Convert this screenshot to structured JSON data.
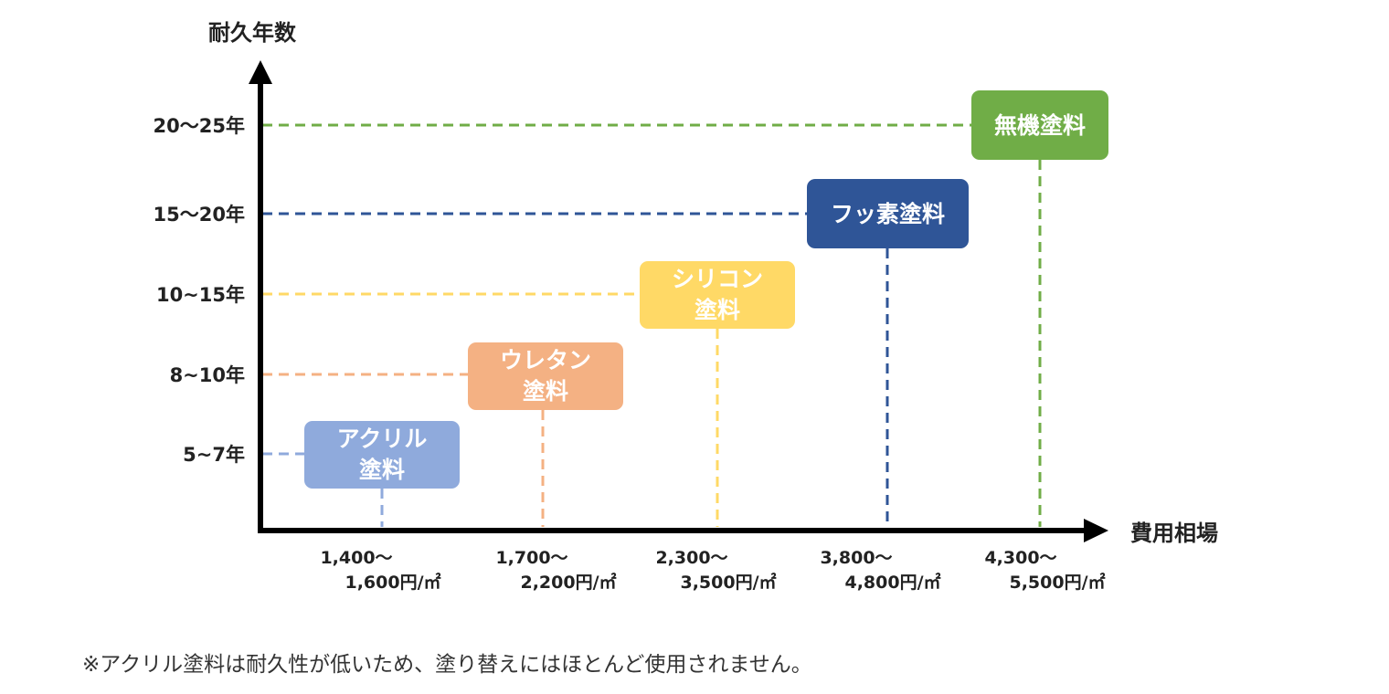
{
  "chart_data": {
    "type": "scatter",
    "ylabel": "耐久年数",
    "xlabel": "費用相場",
    "y_ticks": [
      "5~7年",
      "8~10年",
      "10~15年",
      "15～20年",
      "20～25年"
    ],
    "x_ticks": [
      {
        "line1": "1,400～",
        "line2": "1,600円/㎡"
      },
      {
        "line1": "1,700～",
        "line2": "2,200円/㎡"
      },
      {
        "line1": "2,300～",
        "line2": "3,500円/㎡"
      },
      {
        "line1": "3,800～",
        "line2": "4,800円/㎡"
      },
      {
        "line1": "4,300～",
        "line2": "5,500円/㎡"
      }
    ],
    "series": [
      {
        "name": "アクリル塗料",
        "label_lines": [
          "アクリル",
          "塗料"
        ],
        "cost_min": 1400,
        "cost_max": 1600,
        "years_min": 5,
        "years_max": 7,
        "color": "#8faadc"
      },
      {
        "name": "ウレタン塗料",
        "label_lines": [
          "ウレタン",
          "塗料"
        ],
        "cost_min": 1700,
        "cost_max": 2200,
        "years_min": 8,
        "years_max": 10,
        "color": "#f4b183"
      },
      {
        "name": "シリコン塗料",
        "label_lines": [
          "シリコン",
          "塗料"
        ],
        "cost_min": 2300,
        "cost_max": 3500,
        "years_min": 10,
        "years_max": 15,
        "color": "#ffd966"
      },
      {
        "name": "フッ素塗料",
        "label_lines": [
          "フッ素塗料"
        ],
        "cost_min": 3800,
        "cost_max": 4800,
        "years_min": 15,
        "years_max": 20,
        "color": "#2f5597"
      },
      {
        "name": "無機塗料",
        "label_lines": [
          "無機塗料"
        ],
        "cost_min": 4300,
        "cost_max": 5500,
        "years_min": 20,
        "years_max": 25,
        "color": "#70ad47"
      }
    ],
    "grid": false
  },
  "note": "※アクリル塗料は耐久性が低いため、塗り替えにはほとんど使用されません。"
}
